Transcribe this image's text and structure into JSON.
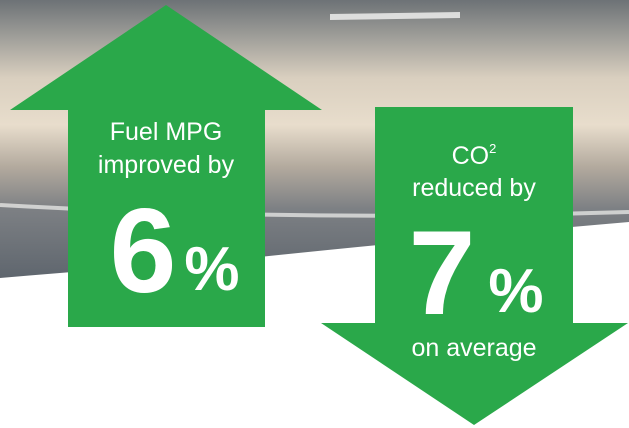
{
  "arrow_up": {
    "line1": "Fuel MPG",
    "line2": "improved by",
    "number": 6,
    "unit": "%"
  },
  "arrow_down": {
    "line1": "CO",
    "superscript": "2",
    "line2": "reduced by",
    "number": 7,
    "unit": "%",
    "line3": "on average"
  }
}
